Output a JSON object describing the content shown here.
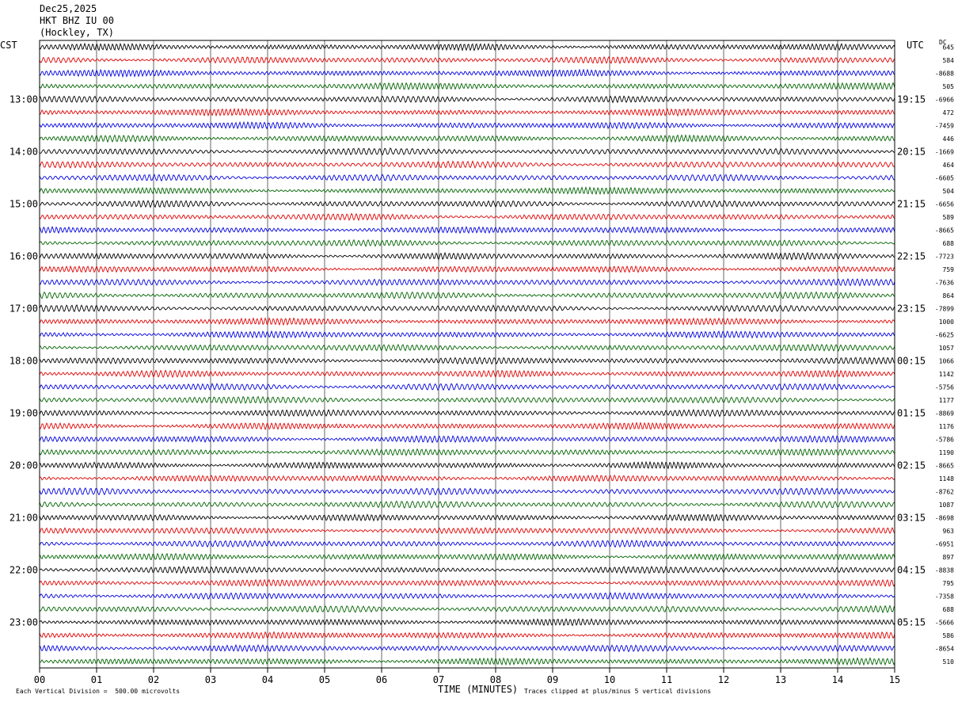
{
  "header": {
    "date": "Dec25,2025",
    "station": "HKT BHZ IU 00",
    "location": "(Hockley, TX)"
  },
  "left_zone_label": "CST",
  "right_zone_label": "UTC",
  "dc_header": "DC",
  "footer": {
    "vertical_division": "Each Vertical Division =  500.00 microvolts",
    "clip_note": "Traces clipped at plus/minus 5 vertical divisions"
  },
  "chart_data": {
    "type": "line",
    "xlabel": "TIME (MINUTES)",
    "xlim": [
      0,
      15
    ],
    "x_ticks": [
      "00",
      "01",
      "02",
      "03",
      "04",
      "05",
      "06",
      "07",
      "08",
      "09",
      "10",
      "11",
      "12",
      "13",
      "14",
      "15"
    ],
    "trace_colors": [
      "#000000",
      "#e00000",
      "#0000e0",
      "#006400"
    ],
    "rows_per_hour": 4,
    "num_traces": 48,
    "left_hour_labels": [
      "13:00",
      "14:00",
      "15:00",
      "16:00",
      "17:00",
      "18:00",
      "19:00",
      "20:00",
      "21:00",
      "22:00",
      "23:00"
    ],
    "right_hour_labels": [
      "19:15",
      "20:15",
      "21:15",
      "22:15",
      "23:15",
      "00:15",
      "01:15",
      "02:15",
      "03:15",
      "04:15",
      "05:15"
    ],
    "dc_offsets": [
      "645",
      "584",
      "-8688",
      "505",
      "-6966",
      "472",
      "-7459",
      "446",
      "-1669",
      "464",
      "-6605",
      "504",
      "-6656",
      "589",
      "-8665",
      "688",
      "-7723",
      "759",
      "-7636",
      "864",
      "-7899",
      "1000",
      "-6625",
      "1057",
      "1066",
      "1142",
      "-5756",
      "1177",
      "-8869",
      "1176",
      "-5786",
      "1190",
      "-8665",
      "1148",
      "-8762",
      "1087",
      "-8698",
      "963",
      "-6951",
      "897",
      "-8838",
      "795",
      "-7358",
      "688",
      "-5666",
      "586",
      "-8654",
      "510"
    ]
  }
}
